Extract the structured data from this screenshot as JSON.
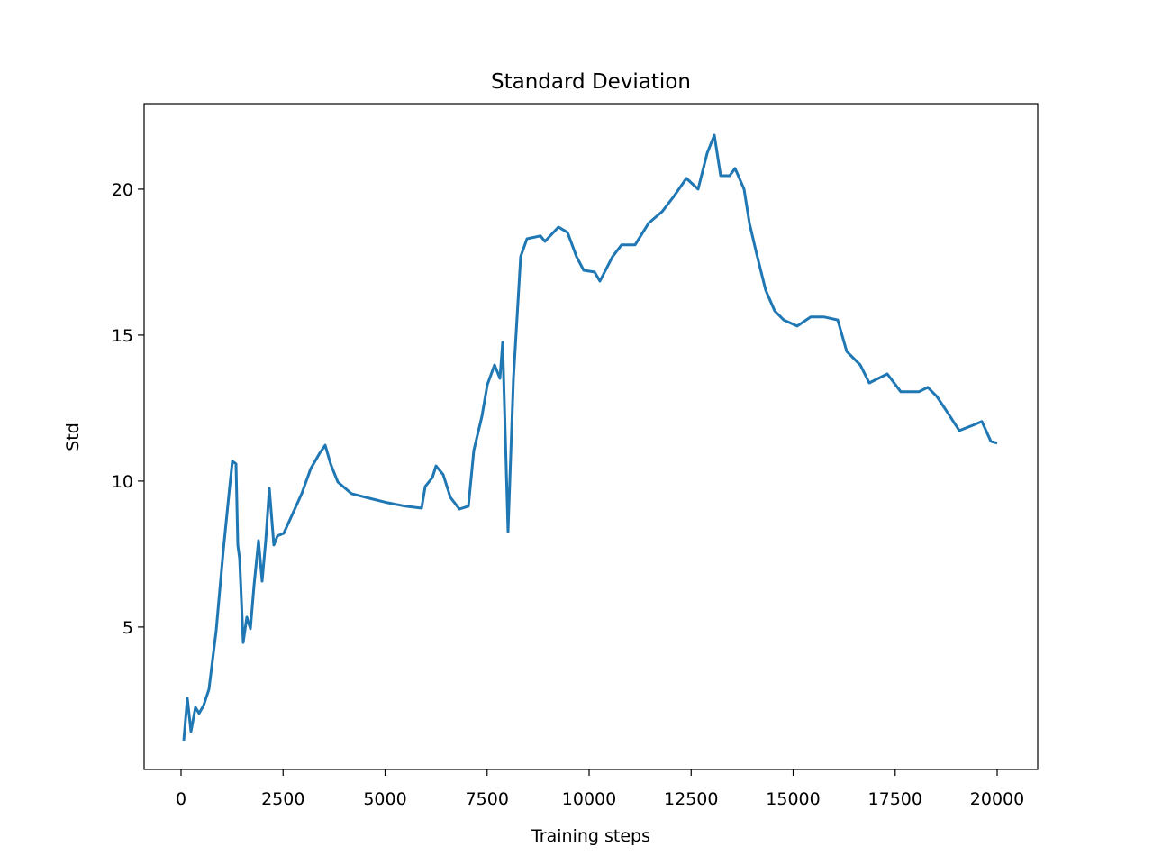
{
  "chart_data": {
    "type": "line",
    "title": "Standard Deviation",
    "x_label": "Training steps",
    "y_label": "Std",
    "x": [
      66,
      155,
      243,
      353,
      442,
      552,
      684,
      861,
      1038,
      1192,
      1258,
      1347,
      1391,
      1435,
      1523,
      1611,
      1700,
      1788,
      1898,
      1987,
      2075,
      2163,
      2274,
      2362,
      2517,
      2737,
      2958,
      3179,
      3400,
      3532,
      3664,
      3841,
      4172,
      4614,
      5055,
      5497,
      5894,
      5982,
      6159,
      6247,
      6424,
      6600,
      6821,
      7042,
      7174,
      7373,
      7505,
      7682,
      7815,
      7881,
      8013,
      8146,
      8322,
      8477,
      8808,
      8918,
      9249,
      9470,
      9691,
      9868,
      10132,
      10265,
      10574,
      10795,
      11126,
      11457,
      11788,
      12075,
      12384,
      12671,
      12892,
      13068,
      13223,
      13444,
      13576,
      13797,
      13929,
      14106,
      14327,
      14547,
      14768,
      15099,
      15430,
      15762,
      16093,
      16313,
      16645,
      16865,
      17307,
      17638,
      18079,
      18300,
      18521,
      18742,
      19073,
      19404,
      19625,
      19845,
      20000
    ],
    "series": [
      {
        "name": "Std",
        "color": "#1f77b4",
        "values": [
          1.11,
          2.56,
          1.42,
          2.25,
          2.04,
          2.31,
          2.87,
          4.88,
          7.65,
          9.81,
          10.68,
          10.59,
          7.81,
          7.35,
          4.47,
          5.34,
          4.94,
          6.42,
          7.96,
          6.57,
          7.96,
          9.75,
          7.81,
          8.12,
          8.21,
          8.89,
          9.57,
          10.43,
          10.96,
          11.23,
          10.59,
          9.97,
          9.57,
          9.41,
          9.26,
          9.14,
          9.07,
          9.81,
          10.12,
          10.52,
          10.22,
          9.44,
          9.04,
          9.14,
          11.05,
          12.22,
          13.3,
          13.98,
          13.52,
          14.75,
          8.27,
          13.52,
          17.69,
          18.3,
          18.4,
          18.21,
          18.7,
          18.52,
          17.69,
          17.22,
          17.16,
          16.85,
          17.69,
          18.09,
          18.09,
          18.83,
          19.23,
          19.75,
          20.37,
          20.0,
          21.23,
          21.85,
          20.46,
          20.46,
          20.71,
          20.0,
          18.83,
          17.78,
          16.54,
          15.83,
          15.52,
          15.31,
          15.62,
          15.62,
          15.52,
          14.44,
          13.98,
          13.36,
          13.67,
          13.06,
          13.06,
          13.21,
          12.9,
          12.44,
          11.73,
          11.91,
          12.04,
          11.36,
          11.3
        ]
      }
    ],
    "xlim": [
      -905,
      20993
    ],
    "ylim": [
      0.12,
      22.93
    ],
    "xticks": [
      0,
      2500,
      5000,
      7500,
      10000,
      12500,
      15000,
      17500,
      20000
    ],
    "yticks": [
      5,
      10,
      15,
      20
    ],
    "grid": false
  }
}
